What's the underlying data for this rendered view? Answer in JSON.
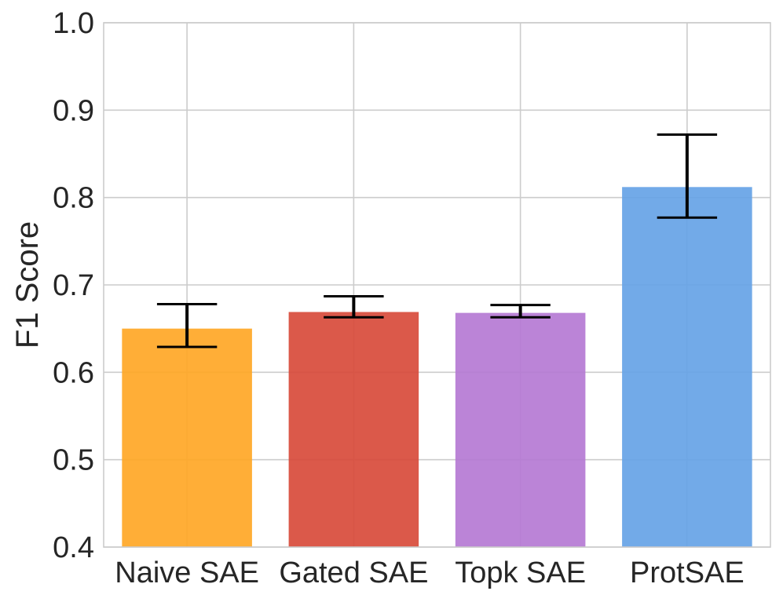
{
  "chart_data": {
    "type": "bar",
    "title": "",
    "xlabel": "",
    "ylabel": "F1 Score",
    "ylim": [
      0.4,
      1.0
    ],
    "yticks": [
      "0.4",
      "0.5",
      "0.6",
      "0.7",
      "0.8",
      "0.9",
      "1.0"
    ],
    "grid": true,
    "categories": [
      "Naive SAE",
      "Gated SAE",
      "Topk SAE",
      "ProtSAE"
    ],
    "values": [
      0.65,
      0.669,
      0.668,
      0.812
    ],
    "error_low": [
      0.629,
      0.663,
      0.663,
      0.777
    ],
    "error_high": [
      0.678,
      0.687,
      0.677,
      0.872
    ],
    "colors": [
      "#FFA726",
      "#D84B3B",
      "#B57AD4",
      "#66A3E6"
    ]
  }
}
